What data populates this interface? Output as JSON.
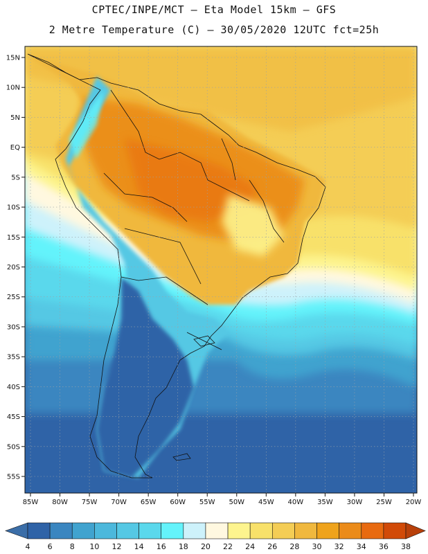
{
  "header": {
    "line1": "CPTEC/INPE/MCT –  Eta Model 15km – GFS",
    "line2": "2 Metre Temperature (C) – 30/05/2020 12UTC fct=25h"
  },
  "map": {
    "lat_labels": [
      "15N",
      "10N",
      "5N",
      "EQ",
      "5S",
      "10S",
      "15S",
      "20S",
      "25S",
      "30S",
      "35S",
      "40S",
      "45S",
      "50S",
      "55S"
    ],
    "lon_labels": [
      "85W",
      "80W",
      "75W",
      "70W",
      "65W",
      "60W",
      "55W",
      "50W",
      "45W",
      "40W",
      "35W",
      "30W",
      "25W",
      "20W"
    ],
    "lat_values": [
      15,
      10,
      5,
      0,
      -5,
      -10,
      -15,
      -20,
      -25,
      -30,
      -35,
      -40,
      -45,
      -50,
      -55
    ],
    "lon_values": [
      -85,
      -80,
      -75,
      -70,
      -65,
      -60,
      -55,
      -50,
      -45,
      -40,
      -35,
      -30,
      -25,
      -20
    ]
  },
  "colorbar": {
    "labels": [
      "4",
      "6",
      "8",
      "10",
      "12",
      "14",
      "16",
      "18",
      "20",
      "22",
      "24",
      "26",
      "28",
      "30",
      "32",
      "34",
      "36",
      "38"
    ],
    "colors": [
      "#3b6ea8",
      "#2f63a7",
      "#3a86c0",
      "#40a3cf",
      "#4cb8dc",
      "#55c8e4",
      "#5ad8ec",
      "#64f3fb",
      "#cdf2fb",
      "#fff8e0",
      "#fdf48e",
      "#f8e16a",
      "#f4cd55",
      "#f0b83e",
      "#efa31c",
      "#eb8b19",
      "#e86a10",
      "#d14a08",
      "#b8400a"
    ]
  },
  "colors": {
    "ocean_south": "#2f63a7",
    "ocean_mid": "#55c8e4",
    "ocean_north": "#f4cd55",
    "land_warm": "#eb8b19",
    "land_cold": "#2f63a7",
    "border": "#111111"
  }
}
